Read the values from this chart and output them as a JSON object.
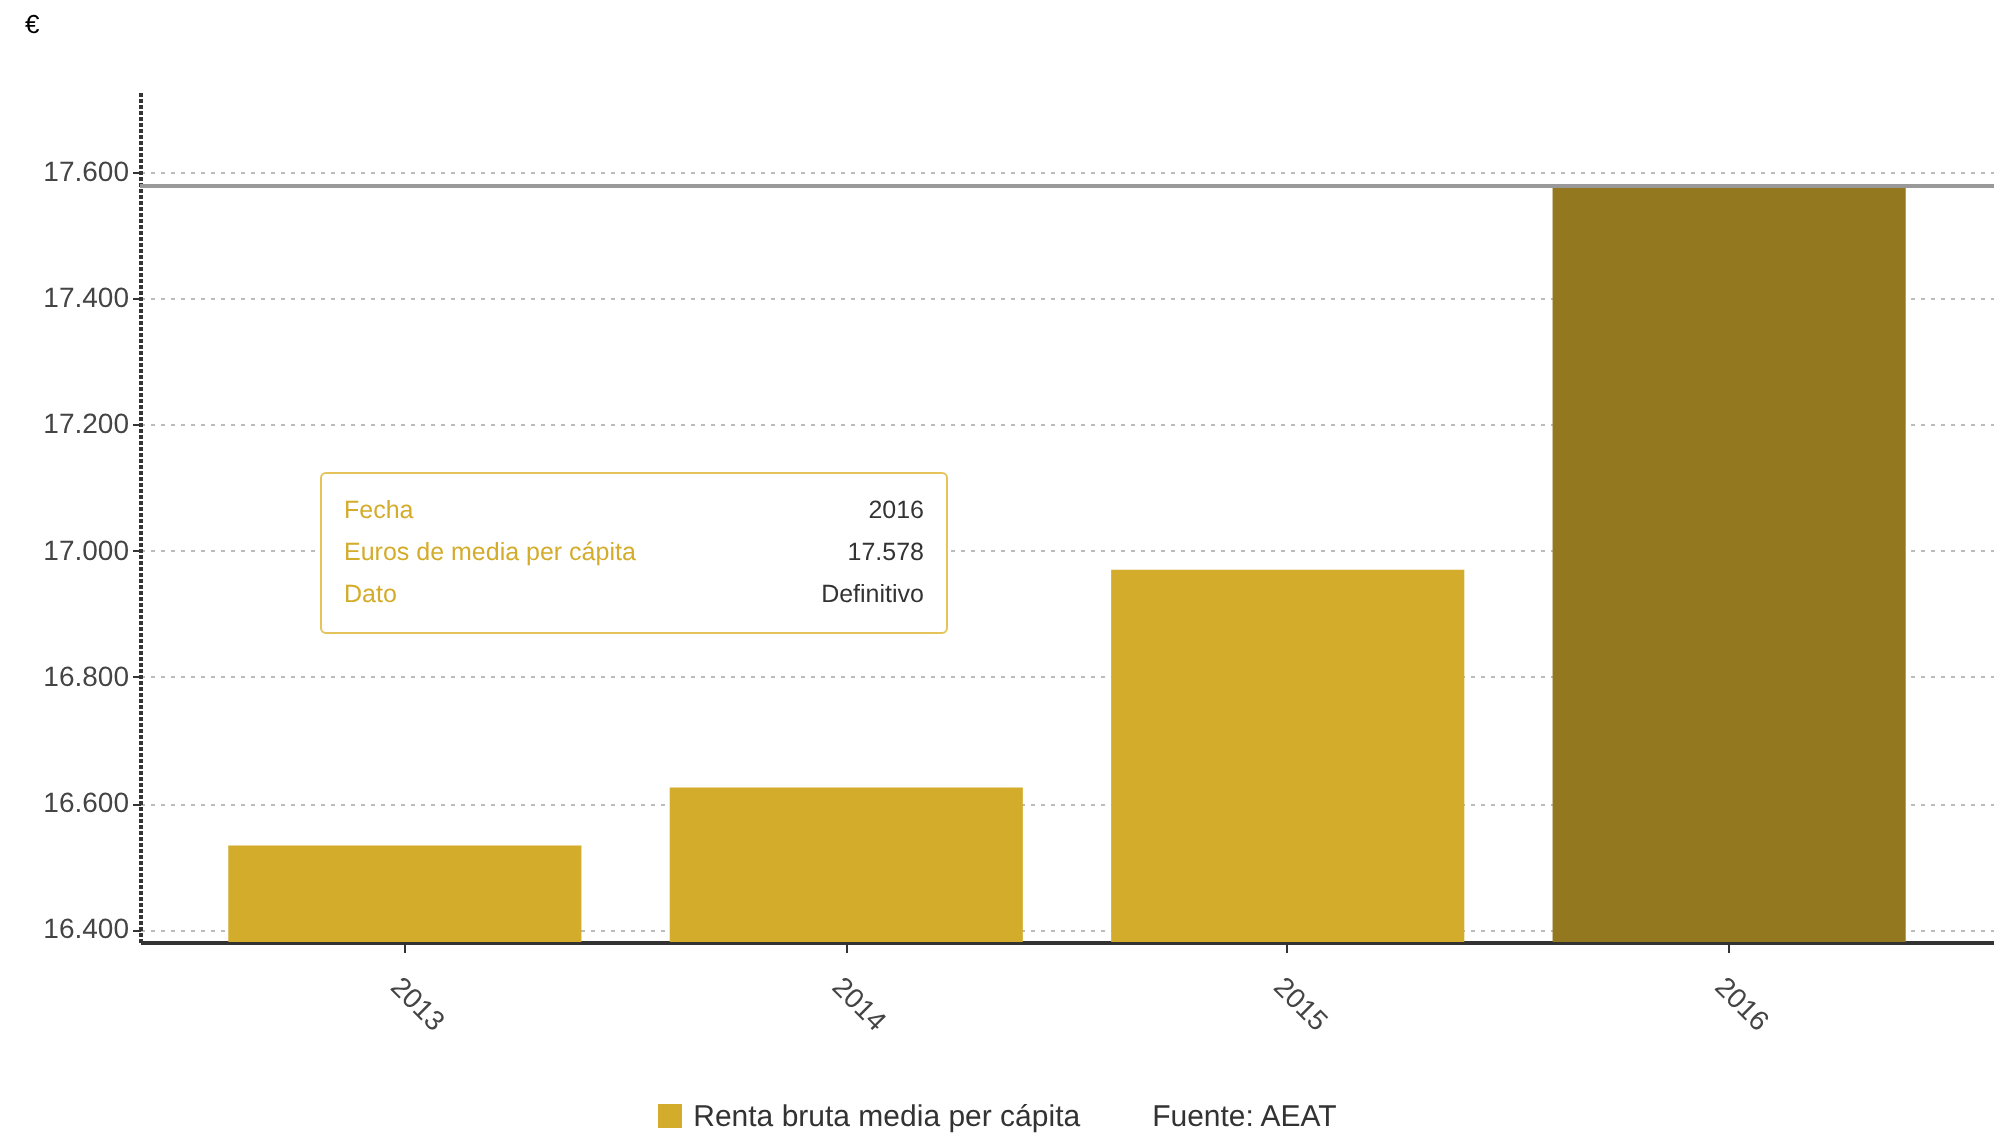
{
  "chart_data": {
    "type": "bar",
    "ylabel": "€",
    "categories": [
      "2013",
      "2014",
      "2015",
      "2016"
    ],
    "series": [
      {
        "name": "Renta bruta media per cápita",
        "color": "#d4ac2b",
        "colors": [
          "#d4ac2b",
          "#d4ac2b",
          "#d4ac2b",
          "#937820"
        ],
        "values": [
          16533,
          16625,
          16970,
          17578
        ]
      }
    ],
    "ylim": [
      16380,
      17730
    ],
    "yticks": [
      {
        "value": 16400,
        "label": "16.400"
      },
      {
        "value": 16600,
        "label": "16.600"
      },
      {
        "value": 16800,
        "label": "16.800"
      },
      {
        "value": 17000,
        "label": "17.000"
      },
      {
        "value": 17200,
        "label": "17.200"
      },
      {
        "value": 17400,
        "label": "17.400"
      },
      {
        "value": 17600,
        "label": "17.600"
      }
    ],
    "ref_lines": [
      {
        "axis": "y",
        "value": 17578,
        "label": null,
        "color": "#999999"
      }
    ],
    "annotations": [
      "Fecha",
      "2016",
      "Euros de media per cápita",
      "17.578",
      "Dato",
      "Definitivo",
      "Fuente: AEAT"
    ],
    "grid": "y",
    "legend": "bottom"
  }
}
